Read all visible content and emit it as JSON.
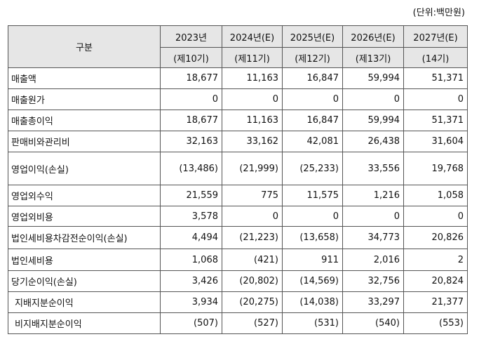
{
  "unit_label": "(단위:백만원)",
  "header": {
    "category": "구분",
    "years": [
      "2023년",
      "2024년(E)",
      "2025년(E)",
      "2026년(E)",
      "2027년(E)"
    ],
    "periods": [
      "(제10기)",
      "(제11기)",
      "(제12기)",
      "(제13기)",
      "(14기)"
    ]
  },
  "rows": [
    {
      "label": "매출액",
      "values": [
        "18,677",
        "11,163",
        "16,847",
        "59,994",
        "51,371"
      ]
    },
    {
      "label": "매출원가",
      "values": [
        "0",
        "0",
        "0",
        "0",
        "0"
      ]
    },
    {
      "label": "매출총이익",
      "values": [
        "18,677",
        "11,163",
        "16,847",
        "59,994",
        "51,371"
      ]
    },
    {
      "label": "판매비와관리비",
      "values": [
        "32,163",
        "33,162",
        "42,081",
        "26,438",
        "31,604"
      ]
    },
    {
      "label": "영업이익(손실)",
      "values": [
        "(13,486)",
        "(21,999)",
        "(25,233)",
        "33,556",
        "19,768"
      ]
    },
    {
      "label": "영업외수익",
      "values": [
        "21,559",
        "775",
        "11,575",
        "1,216",
        "1,058"
      ]
    },
    {
      "label": "영업외비용",
      "values": [
        "3,578",
        "0",
        "0",
        "0",
        "0"
      ]
    },
    {
      "label": "법인세비용차감전순이익(손실)",
      "values": [
        "4,494",
        "(21,223)",
        "(13,658)",
        "34,773",
        "20,826"
      ]
    },
    {
      "label": "법인세비용",
      "values": [
        "1,068",
        "(421)",
        "911",
        "2,016",
        "2"
      ]
    },
    {
      "label": "당기순이익(손실)",
      "values": [
        "3,426",
        "(20,802)",
        "(14,569)",
        "32,756",
        "20,824"
      ]
    },
    {
      "label": "지배지분순이익",
      "values": [
        "3,934",
        "(20,275)",
        "(14,038)",
        "33,297",
        "21,377"
      ]
    },
    {
      "label": "비지배지분순이익",
      "values": [
        "(507)",
        "(527)",
        "(531)",
        "(540)",
        "(553)"
      ]
    }
  ]
}
